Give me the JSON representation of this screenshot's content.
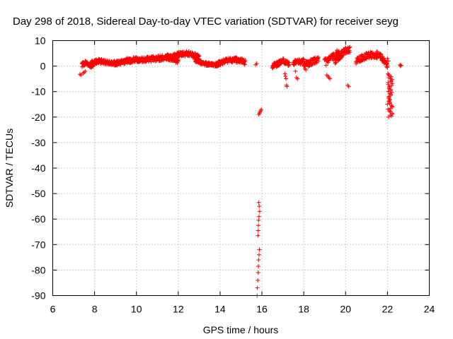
{
  "chart_data": {
    "type": "scatter",
    "title": "Day 298 of 2018, Sidereal Day-to-day VTEC variation (SDTVAR) for receiver seyg",
    "xlabel": "GPS time / hours",
    "ylabel": "SDTVAR / TECUs",
    "xlim": [
      6,
      24
    ],
    "ylim": [
      -90,
      10
    ],
    "xticks": [
      "6",
      "8",
      "10",
      "12",
      "14",
      "16",
      "18",
      "20",
      "22",
      "24"
    ],
    "yticks": [
      "10",
      "0",
      "-10",
      "-20",
      "-30",
      "-40",
      "-50",
      "-60",
      "-70",
      "-80",
      "-90"
    ],
    "grid": true,
    "marker": "+",
    "color": "#ff0000",
    "series": [
      {
        "name": "SDTVAR",
        "segments": [
          {
            "x0": 7.4,
            "x1": 8.0,
            "y": [
              0.5,
              1.5,
              0.0,
              1.0
            ],
            "spread": 2.0
          },
          {
            "x0": 7.8,
            "x1": 9.0,
            "y": [
              1.0,
              2.0,
              1.5,
              1.0
            ],
            "spread": 1.8
          },
          {
            "x0": 9.0,
            "x1": 10.5,
            "y": [
              1.0,
              2.0,
              2.5,
              2.5
            ],
            "spread": 2.0
          },
          {
            "x0": 10.5,
            "x1": 12.0,
            "y": [
              2.5,
              3.0,
              3.5,
              2.0
            ],
            "spread": 2.2
          },
          {
            "x0": 11.5,
            "x1": 13.0,
            "y": [
              3.0,
              4.5,
              5.0,
              3.5
            ],
            "spread": 2.0
          },
          {
            "x0": 12.8,
            "x1": 14.0,
            "y": [
              2.5,
              1.0,
              0.5,
              0.5
            ],
            "spread": 1.5
          },
          {
            "x0": 13.8,
            "x1": 15.2,
            "y": [
              0.5,
              2.0,
              2.5,
              1.5
            ],
            "spread": 2.0
          },
          {
            "x0": 16.5,
            "x1": 17.3,
            "y": [
              0.0,
              1.0,
              2.0,
              0.5
            ],
            "spread": 2.0
          },
          {
            "x0": 17.5,
            "x1": 18.0,
            "y": [
              1.0,
              2.0,
              1.5,
              2.0
            ],
            "spread": 2.0
          },
          {
            "x0": 18.0,
            "x1": 18.7,
            "y": [
              0.5,
              1.0,
              2.0,
              2.5
            ],
            "spread": 2.5
          },
          {
            "x0": 19.0,
            "x1": 19.7,
            "y": [
              1.5,
              2.5,
              4.0,
              5.5
            ],
            "spread": 3.0
          },
          {
            "x0": 19.5,
            "x1": 20.2,
            "y": [
              2.0,
              4.0,
              6.0,
              6.5
            ],
            "spread": 2.5
          },
          {
            "x0": 20.5,
            "x1": 21.5,
            "y": [
              2.0,
              3.5,
              4.5,
              3.5
            ],
            "spread": 2.5
          },
          {
            "x0": 21.5,
            "x1": 22.0,
            "y": [
              5.0,
              4.0,
              2.0,
              0.0
            ],
            "spread": 2.0
          }
        ],
        "points": [
          [
            7.3,
            -3.2
          ],
          [
            7.35,
            -3.5
          ],
          [
            7.45,
            -2.8
          ],
          [
            7.5,
            -2.5
          ],
          [
            7.55,
            -2.0
          ],
          [
            15.7,
            0.5
          ],
          [
            15.75,
            1.0
          ],
          [
            15.85,
            -19.0
          ],
          [
            15.88,
            -18.5
          ],
          [
            15.9,
            -18.0
          ],
          [
            15.95,
            -17.5
          ],
          [
            15.97,
            -17.0
          ],
          [
            15.85,
            -53.5
          ],
          [
            15.87,
            -55.0
          ],
          [
            15.89,
            -57.0
          ],
          [
            15.86,
            -59.0
          ],
          [
            15.84,
            -60.5
          ],
          [
            15.83,
            -62.5
          ],
          [
            15.82,
            -64.5
          ],
          [
            15.81,
            -66.5
          ],
          [
            15.88,
            -72.0
          ],
          [
            15.86,
            -74.0
          ],
          [
            15.84,
            -76.0
          ],
          [
            15.83,
            -78.5
          ],
          [
            15.82,
            -81.0
          ],
          [
            15.8,
            -84.0
          ],
          [
            15.78,
            -87.0
          ],
          [
            15.77,
            -90.0
          ],
          [
            17.1,
            -3.0
          ],
          [
            17.12,
            -4.0
          ],
          [
            17.15,
            -5.0
          ],
          [
            17.18,
            -7.5
          ],
          [
            17.2,
            -8.0
          ],
          [
            17.6,
            -2.0
          ],
          [
            17.65,
            -4.5
          ],
          [
            17.7,
            -5.0
          ],
          [
            18.0,
            0.0
          ],
          [
            18.05,
            -1.0
          ],
          [
            18.1,
            -1.5
          ],
          [
            18.5,
            3.0
          ],
          [
            18.55,
            2.5
          ],
          [
            19.1,
            -3.5
          ],
          [
            19.15,
            -4.0
          ],
          [
            19.2,
            -4.5
          ],
          [
            19.25,
            -5.0
          ],
          [
            20.1,
            -7.5
          ],
          [
            20.15,
            -8.0
          ],
          [
            22.0,
            3.0
          ],
          [
            22.05,
            2.0
          ],
          [
            22.6,
            0.5
          ],
          [
            22.62,
            0.0
          ],
          [
            22.65,
            0.3
          ]
        ],
        "column": {
          "x0": 22.0,
          "x1": 22.25,
          "ytop": -3.0,
          "ybottom": -20.0
        }
      }
    ]
  }
}
